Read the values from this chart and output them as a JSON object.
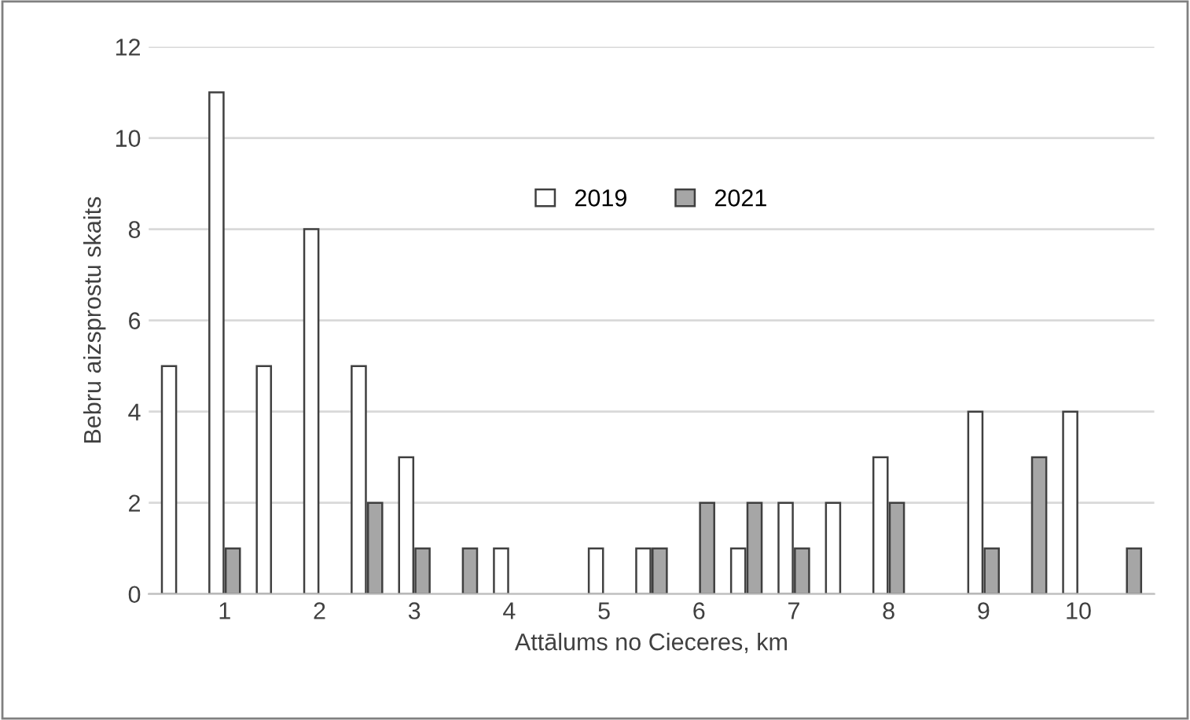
{
  "chart_data": {
    "type": "bar",
    "xlabel": "Attālums no Cieceres, km",
    "ylabel": "Bebru aizsprostu skaits",
    "categories": [
      null,
      "1",
      null,
      "2",
      null,
      "3",
      null,
      "4",
      null,
      "5",
      null,
      "6",
      null,
      "7",
      null,
      "8",
      null,
      "9",
      null,
      "10",
      null
    ],
    "series": [
      {
        "name": "2019",
        "color": "#ffffff",
        "values": [
          5,
          11,
          5,
          8,
          5,
          3,
          null,
          1,
          null,
          1,
          1,
          null,
          1,
          2,
          2,
          3,
          null,
          4,
          null,
          4,
          null
        ]
      },
      {
        "name": "2021",
        "color": "#a6a6a6",
        "values": [
          null,
          1,
          null,
          null,
          2,
          1,
          1,
          null,
          null,
          null,
          1,
          2,
          2,
          1,
          null,
          2,
          null,
          1,
          3,
          null,
          1
        ]
      }
    ],
    "ylim": [
      0,
      12
    ],
    "yticks": [
      0,
      2,
      4,
      6,
      8,
      10,
      12
    ],
    "grid": "y",
    "legend": "top center"
  }
}
